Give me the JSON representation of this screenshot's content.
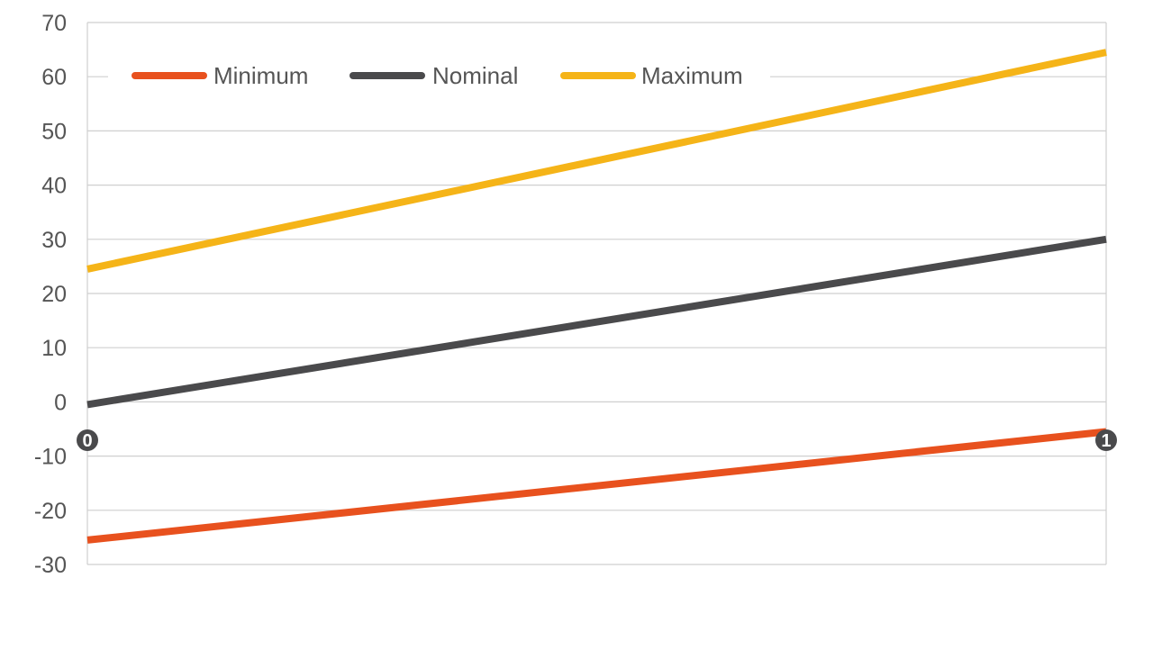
{
  "chart_data": {
    "type": "line",
    "title": "",
    "xlabel": "",
    "ylabel": "",
    "x": [
      0,
      1
    ],
    "x_tick_labels": [
      "0",
      "1"
    ],
    "ylim": [
      -30,
      70
    ],
    "y_ticks": [
      70,
      60,
      50,
      40,
      30,
      20,
      10,
      0,
      -10,
      -20,
      -30
    ],
    "grid": true,
    "legend_position": "top",
    "series": [
      {
        "name": "Minimum",
        "color": "#e8511e",
        "values": [
          -25.5,
          -5.5
        ]
      },
      {
        "name": "Nominal",
        "color": "#4a4a4c",
        "values": [
          -0.5,
          30
        ]
      },
      {
        "name": "Maximum",
        "color": "#f5b418",
        "values": [
          24.5,
          64.5
        ]
      }
    ]
  }
}
